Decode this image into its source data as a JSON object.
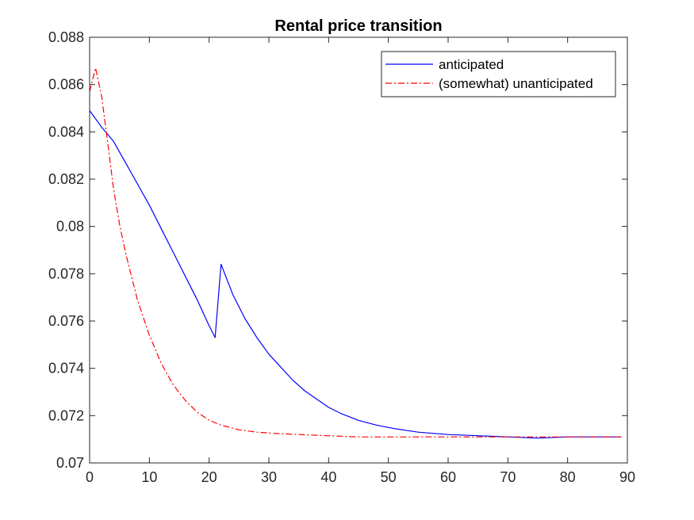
{
  "chart_data": {
    "type": "line",
    "title": "Rental price transition",
    "xlabel": "",
    "ylabel": "",
    "xlim": [
      0,
      90
    ],
    "ylim": [
      0.07,
      0.088
    ],
    "xticks": [
      0,
      10,
      20,
      30,
      40,
      50,
      60,
      70,
      80,
      90
    ],
    "yticks": [
      0.07,
      0.072,
      0.074,
      0.076,
      0.078,
      0.08,
      0.082,
      0.084,
      0.086,
      0.088
    ],
    "xtick_labels": [
      "0",
      "10",
      "20",
      "30",
      "40",
      "50",
      "60",
      "70",
      "80",
      "90"
    ],
    "ytick_labels": [
      "0.07",
      "0.072",
      "0.074",
      "0.076",
      "0.078",
      "0.08",
      "0.082",
      "0.084",
      "0.086",
      "0.088"
    ],
    "grid": false,
    "legend_position": "top-right",
    "series": [
      {
        "name": "anticipated",
        "color": "#0000ff",
        "style": "solid",
        "x": [
          0,
          2,
          4,
          6,
          8,
          10,
          12,
          14,
          16,
          18,
          20,
          21,
          22,
          24,
          26,
          28,
          30,
          32,
          34,
          36,
          38,
          40,
          42,
          45,
          48,
          51,
          55,
          60,
          65,
          70,
          75,
          80,
          85,
          89
        ],
        "y": [
          0.0849,
          0.0842,
          0.0836,
          0.0827,
          0.0818,
          0.0809,
          0.0799,
          0.0789,
          0.0779,
          0.0769,
          0.0758,
          0.0753,
          0.0784,
          0.0771,
          0.0761,
          0.0753,
          0.0746,
          0.07405,
          0.0735,
          0.07305,
          0.0727,
          0.07235,
          0.0721,
          0.0718,
          0.0716,
          0.07145,
          0.0713,
          0.0712,
          0.07115,
          0.0711,
          0.07105,
          0.0711,
          0.0711,
          0.0711
        ]
      },
      {
        "name": "(somewhat) unanticipated",
        "color": "#ff0000",
        "style": "dashdot",
        "x": [
          0,
          1,
          2,
          3,
          4,
          5,
          6,
          7,
          8,
          10,
          12,
          14,
          16,
          18,
          20,
          22,
          25,
          28,
          31,
          35,
          40,
          45,
          50,
          55,
          60,
          70,
          80,
          89
        ],
        "y": [
          0.0857,
          0.0867,
          0.0855,
          0.0836,
          0.0816,
          0.0801,
          0.0789,
          0.0779,
          0.0769,
          0.0754,
          0.0742,
          0.0733,
          0.07265,
          0.07215,
          0.0718,
          0.0716,
          0.0714,
          0.0713,
          0.07125,
          0.0712,
          0.07115,
          0.0711,
          0.0711,
          0.0711,
          0.0711,
          0.0711,
          0.0711,
          0.0711
        ]
      }
    ]
  }
}
